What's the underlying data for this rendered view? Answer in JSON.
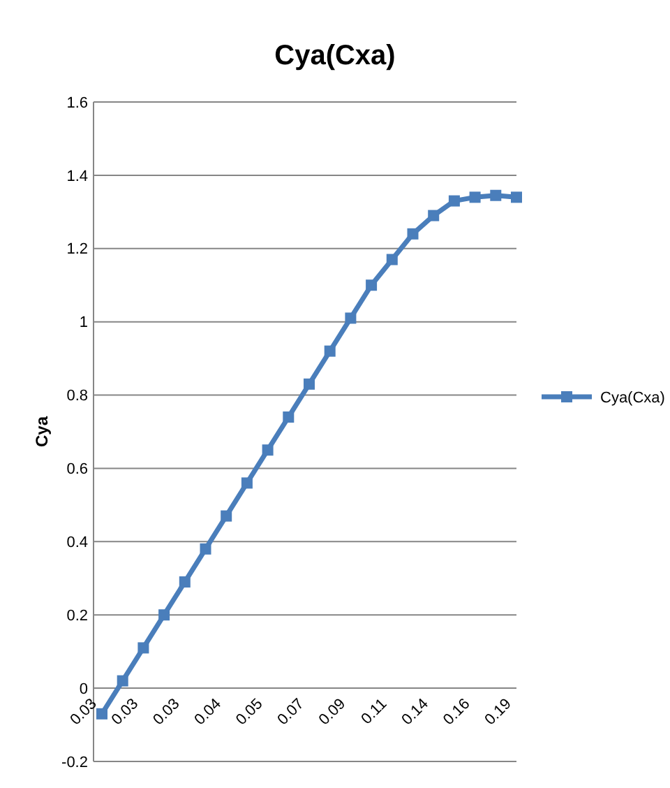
{
  "chart_data": {
    "type": "line",
    "title": "Cya(Cxa)",
    "ylabel": "Cya",
    "categories": [
      "0.03",
      null,
      "0.03",
      null,
      "0.03",
      null,
      "0.04",
      null,
      "0.05",
      null,
      "0.07",
      null,
      "0.09",
      null,
      "0.11",
      null,
      "0.14",
      null,
      "0.16",
      null,
      "0.19"
    ],
    "series": [
      {
        "name": "Cya(Cxa)",
        "color": "#4a7ebb",
        "values": [
          -0.07,
          0.02,
          0.11,
          0.2,
          0.29,
          0.38,
          0.47,
          0.56,
          0.65,
          0.74,
          0.83,
          0.92,
          1.01,
          1.1,
          1.17,
          1.24,
          1.29,
          1.33,
          1.34,
          1.345,
          1.34
        ]
      }
    ],
    "ylim": [
      -0.2,
      1.6
    ],
    "yticks": [
      {
        "value": -0.2,
        "label": "-0.2"
      },
      {
        "value": 0,
        "label": "0"
      },
      {
        "value": 0.2,
        "label": "0.2"
      },
      {
        "value": 0.4,
        "label": "0.4"
      },
      {
        "value": 0.6,
        "label": "0.6"
      },
      {
        "value": 0.8,
        "label": "0.8"
      },
      {
        "value": 1,
        "label": "1"
      },
      {
        "value": 1.2,
        "label": "1.2"
      },
      {
        "value": 1.4,
        "label": "1.4"
      },
      {
        "value": 1.6,
        "label": "1.6"
      }
    ],
    "grid": "y",
    "legend": "right",
    "marker": "square",
    "line_style": "solid"
  }
}
